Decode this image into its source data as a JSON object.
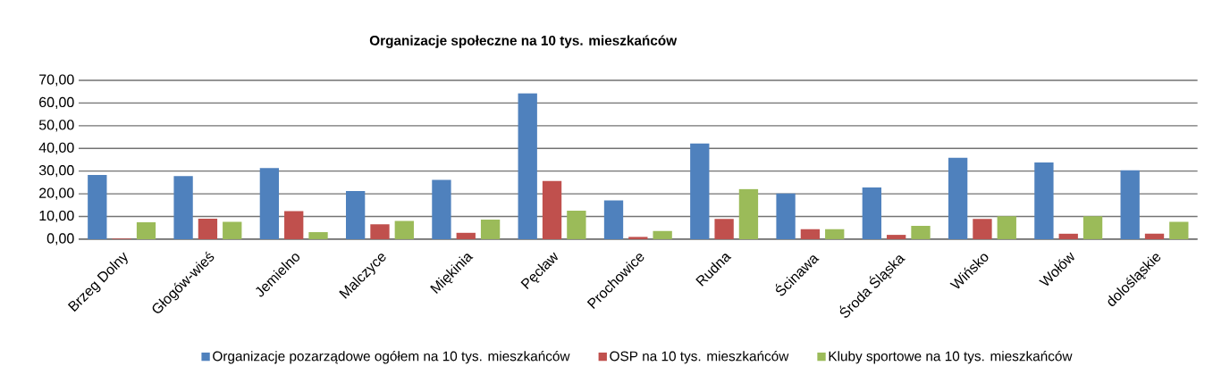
{
  "chart_data": {
    "type": "bar",
    "title": "Organizacje społeczne na 10 tys. mieszkańców",
    "categories": [
      "Brzeg Dolny",
      "Głogów-wieś",
      "Jemielno",
      "Malczyce",
      "Miękinia",
      "Pęcław",
      "Prochowice",
      "Rudna",
      "Ścinawa",
      "Środa Śląska",
      "Wińsko",
      "Wołów",
      "dolośląskie"
    ],
    "series": [
      {
        "name": "Organizacje pozarządowe ogółem na 10 tys. mieszkańców",
        "color": "#4f81bd",
        "values": [
          28.3,
          27.8,
          31.3,
          21.2,
          26.1,
          64.3,
          17.1,
          42.2,
          20.1,
          22.8,
          35.9,
          33.8,
          30.4
        ]
      },
      {
        "name": "OSP na 10 tys. mieszkańców",
        "color": "#c0504d",
        "values": [
          0.3,
          9.0,
          12.4,
          6.6,
          2.8,
          25.6,
          1.0,
          8.9,
          4.4,
          1.9,
          8.9,
          2.4,
          2.4
        ]
      },
      {
        "name": "Kluby sportowe na 10 tys. mieszkańców",
        "color": "#9bbb59",
        "values": [
          7.4,
          7.6,
          3.1,
          8.0,
          8.6,
          12.6,
          3.6,
          22.1,
          4.4,
          5.9,
          10.1,
          10.1,
          7.6
        ]
      }
    ],
    "ylim": [
      0,
      70
    ],
    "yticks": [
      {
        "value": 0,
        "label": "0,00"
      },
      {
        "value": 10,
        "label": "10,00"
      },
      {
        "value": 20,
        "label": "20,00"
      },
      {
        "value": 30,
        "label": "30,00"
      },
      {
        "value": 40,
        "label": "40,00"
      },
      {
        "value": 50,
        "label": "50,00"
      },
      {
        "value": 60,
        "label": "60,00"
      },
      {
        "value": 70,
        "label": "70,00"
      }
    ],
    "grid": "y",
    "legend": "bottom"
  }
}
